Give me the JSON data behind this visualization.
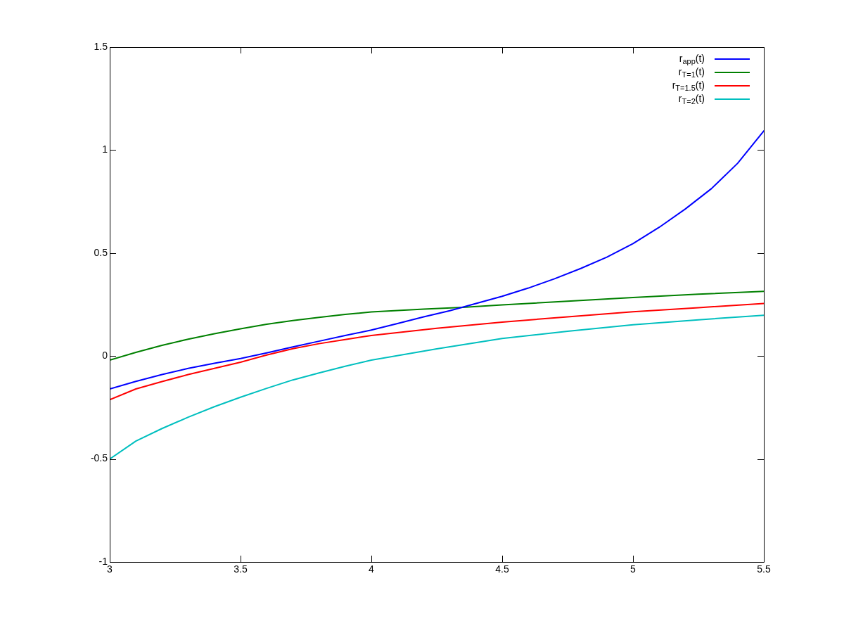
{
  "chart_data": {
    "type": "line",
    "xlim": [
      3,
      5.5
    ],
    "xticks": [
      3,
      3.5,
      4,
      4.5,
      5,
      5.5
    ],
    "ylim": [
      -1,
      1.5
    ],
    "yticks": [
      -1,
      -0.5,
      0,
      0.5,
      1,
      1.5
    ],
    "grid": false,
    "legend": "top right",
    "marker": "none",
    "line_style": "solid",
    "series": [
      {
        "name": "r$_{app}$(t)",
        "color": "#0000ff",
        "x": [
          3,
          3.1,
          3.2,
          3.3,
          3.4,
          3.5,
          3.6,
          3.7,
          3.8,
          3.9,
          4,
          4.1,
          4.2,
          4.3,
          4.4,
          4.5,
          4.6,
          4.7,
          4.8,
          4.9,
          5,
          5.1,
          5.2,
          5.3,
          5.4,
          5.5
        ],
        "values": [
          -0.16,
          -0.123,
          -0.09,
          -0.06,
          -0.035,
          -0.012,
          0.015,
          0.044,
          0.072,
          0.1,
          0.126,
          0.158,
          0.19,
          0.22,
          0.255,
          0.29,
          0.33,
          0.375,
          0.425,
          0.48,
          0.546,
          0.625,
          0.714,
          0.813,
          0.936,
          1.093
        ]
      },
      {
        "name": "r$_{T=1}$(t)",
        "color": "#008000",
        "x": [
          3,
          3.1,
          3.2,
          3.3,
          3.4,
          3.5,
          3.6,
          3.7,
          3.8,
          3.9,
          4,
          4.2,
          4.35,
          4.5,
          4.75,
          5,
          5.25,
          5.5
        ],
        "values": [
          -0.02,
          0.018,
          0.052,
          0.082,
          0.108,
          0.132,
          0.154,
          0.172,
          0.188,
          0.202,
          0.214,
          0.228,
          0.236,
          0.248,
          0.266,
          0.284,
          0.3,
          0.314
        ]
      },
      {
        "name": "r$_{T=1.5}$(t)",
        "color": "#ff0000",
        "x": [
          3,
          3.1,
          3.2,
          3.3,
          3.4,
          3.5,
          3.6,
          3.7,
          3.8,
          3.9,
          4,
          4.25,
          4.5,
          4.75,
          5,
          5.25,
          5.5
        ],
        "values": [
          -0.212,
          -0.16,
          -0.124,
          -0.09,
          -0.06,
          -0.03,
          0.005,
          0.036,
          0.06,
          0.08,
          0.1,
          0.135,
          0.165,
          0.19,
          0.215,
          0.235,
          0.255
        ]
      },
      {
        "name": "r$_{T=2}$(t)",
        "color": "#00bfbf",
        "x": [
          3,
          3.1,
          3.2,
          3.3,
          3.4,
          3.5,
          3.6,
          3.7,
          3.8,
          3.9,
          4,
          4.25,
          4.5,
          4.75,
          5,
          5.25,
          5.5
        ],
        "values": [
          -0.5,
          -0.413,
          -0.352,
          -0.297,
          -0.246,
          -0.2,
          -0.157,
          -0.116,
          -0.082,
          -0.05,
          -0.02,
          0.035,
          0.085,
          0.12,
          0.152,
          0.176,
          0.198
        ]
      }
    ]
  }
}
